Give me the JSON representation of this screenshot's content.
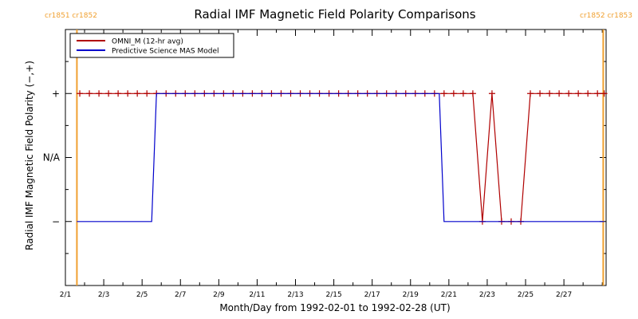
{
  "chart_data": {
    "type": "line",
    "title": "Radial IMF Magnetic Field Polarity Comparisons",
    "xlabel": "Month/Day from 1992-02-01 to 1992-02-28 (UT)",
    "ylabel": "Radial IMF Magnetic Field Polarity (−,+)",
    "xlim": [
      1,
      29.2
    ],
    "ylim": [
      -2.0,
      2.0
    ],
    "x_ticks": [
      1,
      3,
      5,
      7,
      9,
      11,
      13,
      15,
      17,
      19,
      21,
      23,
      25,
      27
    ],
    "x_tick_labels": [
      "2/1",
      "2/3",
      "2/5",
      "2/7",
      "2/9",
      "2/11",
      "2/13",
      "2/15",
      "2/17",
      "2/19",
      "2/21",
      "2/23",
      "2/25",
      "2/27"
    ],
    "y_ticks": [
      1,
      0,
      -1
    ],
    "y_tick_labels": [
      "+",
      "N/A",
      "−"
    ],
    "legend_position": "top-left",
    "carrington": {
      "left_label": "cr1851 cr1852",
      "right_label": "cr1852 cr1853",
      "left_x": 1.6,
      "right_x": 29.05,
      "color": "#f0a030"
    },
    "series": [
      {
        "name": "OMNI_M (12-hr avg)",
        "color": "#b00000",
        "marker": "+",
        "x": [
          1.75,
          2.25,
          2.75,
          3.25,
          3.75,
          4.25,
          4.75,
          5.25,
          5.75,
          6.25,
          6.75,
          7.25,
          7.75,
          8.25,
          8.75,
          9.25,
          9.75,
          10.25,
          10.75,
          11.25,
          11.75,
          12.25,
          12.75,
          13.25,
          13.75,
          14.25,
          14.75,
          15.25,
          15.75,
          16.25,
          16.75,
          17.25,
          17.75,
          18.25,
          18.75,
          19.25,
          19.75,
          20.25,
          20.75,
          21.25,
          21.75,
          22.25,
          22.75,
          23.25,
          23.75,
          24.25,
          24.75,
          25.25,
          25.75,
          26.25,
          26.75,
          27.25,
          27.75,
          28.25,
          28.75,
          29.1
        ],
        "values": [
          1,
          1,
          1,
          1,
          1,
          1,
          1,
          1,
          1,
          1,
          1,
          1,
          1,
          1,
          1,
          1,
          1,
          1,
          1,
          1,
          1,
          1,
          1,
          1,
          1,
          1,
          1,
          1,
          1,
          1,
          1,
          1,
          1,
          1,
          1,
          1,
          1,
          1,
          1,
          1,
          1,
          1,
          -1,
          1,
          -1,
          -1,
          -1,
          1,
          1,
          1,
          1,
          1,
          1,
          1,
          1,
          1
        ]
      },
      {
        "name": "Predictive Science MAS Model",
        "color": "#0000cc",
        "marker": "none",
        "x": [
          1.6,
          5.5,
          5.75,
          20.5,
          20.75,
          29.1
        ],
        "values": [
          -1,
          -1,
          1,
          1,
          -1,
          -1
        ]
      }
    ]
  }
}
